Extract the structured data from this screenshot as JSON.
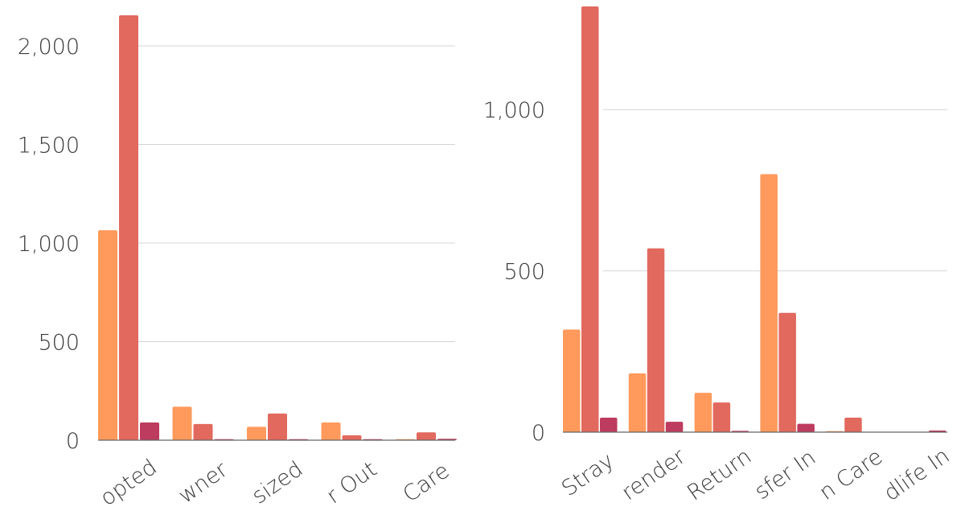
{
  "colors": {
    "series1": "#FF9A5C",
    "series2": "#E2695E",
    "series3": "#BD3B5E"
  },
  "chart_data": [
    {
      "type": "bar",
      "categories": [
        "Adopted",
        "Owner",
        "Euthanized",
        "Transfer Out",
        "Care"
      ],
      "category_labels": [
        "opted",
        "wner",
        "sized",
        "r Out",
        "Care"
      ],
      "series": [
        {
          "values": [
            1065,
            170,
            68,
            90,
            5
          ]
        },
        {
          "values": [
            2155,
            82,
            135,
            25,
            40
          ]
        },
        {
          "values": [
            90,
            3,
            2,
            2,
            7
          ]
        }
      ],
      "ylim": [
        0,
        2200
      ],
      "yticks": [
        0,
        500,
        1000,
        1500,
        2000
      ],
      "ytick_labels": [
        "0",
        "500",
        "1,000",
        "1,500",
        "2,000"
      ],
      "grid": true
    },
    {
      "type": "bar",
      "categories": [
        "Stray",
        "Surrender",
        "Return",
        "Transfer In",
        "In Care",
        "Wildlife In"
      ],
      "category_labels": [
        "Stray",
        "render",
        "Return",
        "sfer In",
        "n Care",
        "dlife In"
      ],
      "series": [
        {
          "values": [
            318,
            182,
            122,
            800,
            3,
            0
          ]
        },
        {
          "values": [
            1320,
            570,
            92,
            370,
            45,
            0
          ]
        },
        {
          "values": [
            45,
            32,
            4,
            26,
            0,
            5
          ]
        }
      ],
      "ylim": [
        0,
        1320
      ],
      "yticks": [
        0,
        500,
        1000
      ],
      "ytick_labels": [
        "0",
        "500",
        "1,000"
      ],
      "grid": true
    }
  ]
}
